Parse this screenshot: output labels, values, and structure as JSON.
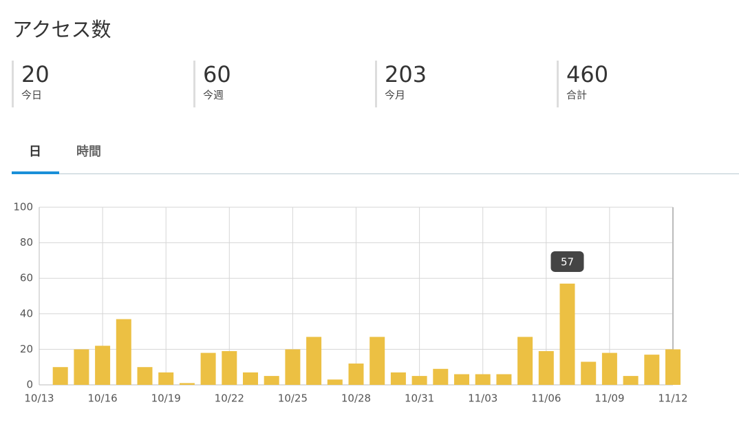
{
  "header": {
    "title": "アクセス数"
  },
  "stats": [
    {
      "value": 20,
      "label": "今日"
    },
    {
      "value": 60,
      "label": "今週"
    },
    {
      "value": 203,
      "label": "今月"
    },
    {
      "value": 460,
      "label": "合計"
    }
  ],
  "tabs": [
    "日",
    "時間"
  ],
  "chart_data": {
    "type": "bar",
    "color": "#ecc043",
    "categories": [
      "10/13",
      null,
      null,
      "10/16",
      null,
      null,
      "10/19",
      null,
      null,
      "10/22",
      null,
      null,
      "10/25",
      null,
      null,
      "10/28",
      null,
      null,
      "10/31",
      null,
      null,
      "11/03",
      null,
      null,
      "11/06",
      null,
      null,
      "11/09",
      null,
      null,
      "11/12"
    ],
    "values": [
      null,
      10,
      20,
      22,
      37,
      10,
      7,
      1,
      18,
      19,
      7,
      5,
      20,
      27,
      3,
      12,
      27,
      7,
      5,
      9,
      6,
      6,
      6,
      27,
      19,
      57,
      13,
      18,
      5,
      17,
      20
    ],
    "ylim": [
      0,
      100
    ],
    "yticks": [
      0,
      20,
      40,
      60,
      80,
      100
    ],
    "grid": true,
    "tooltip": 57
  }
}
